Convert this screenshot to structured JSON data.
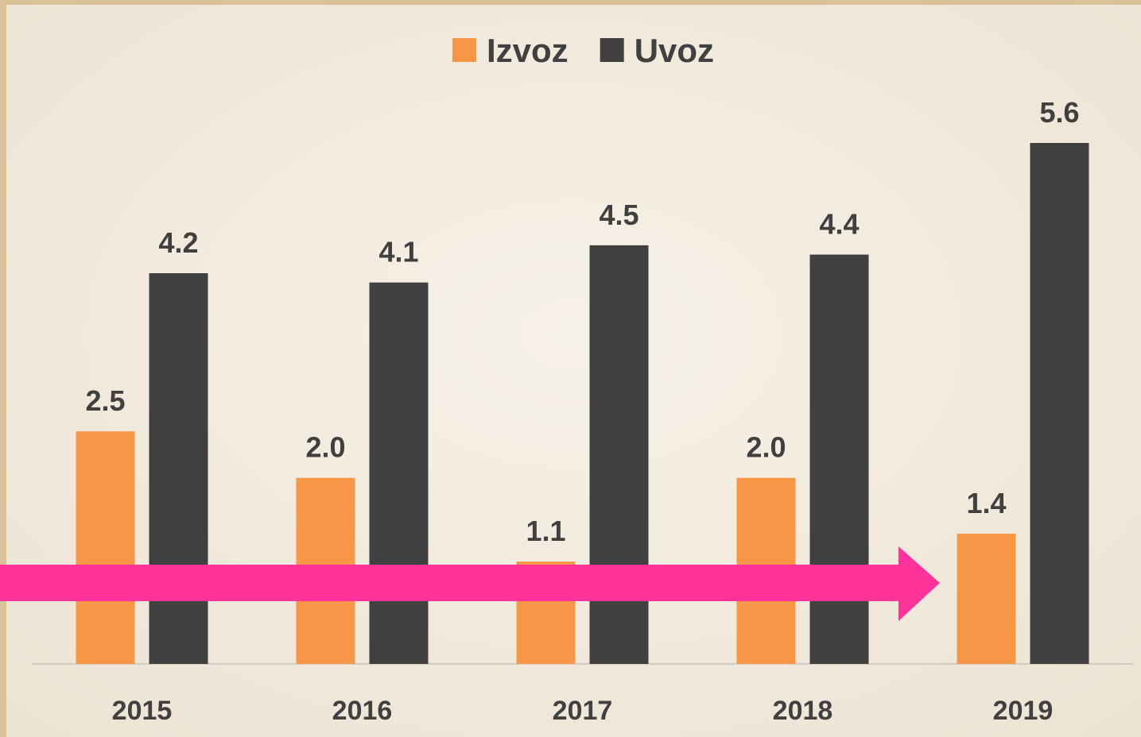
{
  "chart_data": {
    "type": "bar",
    "categories": [
      "2015",
      "2016",
      "2017",
      "2018",
      "2019"
    ],
    "series": [
      {
        "name": "Izvoz",
        "color": "#f79646",
        "values": [
          2.5,
          2.0,
          1.1,
          2.0,
          1.4
        ],
        "value_labels": [
          "2.5",
          "2.0",
          "1.1",
          "2.0",
          "1.4"
        ]
      },
      {
        "name": "Uvoz",
        "color": "#404040",
        "values": [
          4.2,
          4.1,
          4.5,
          4.4,
          5.6
        ],
        "value_labels": [
          "4.2",
          "4.1",
          "4.5",
          "4.4",
          "5.6"
        ]
      }
    ],
    "legend": "top"
  }
}
